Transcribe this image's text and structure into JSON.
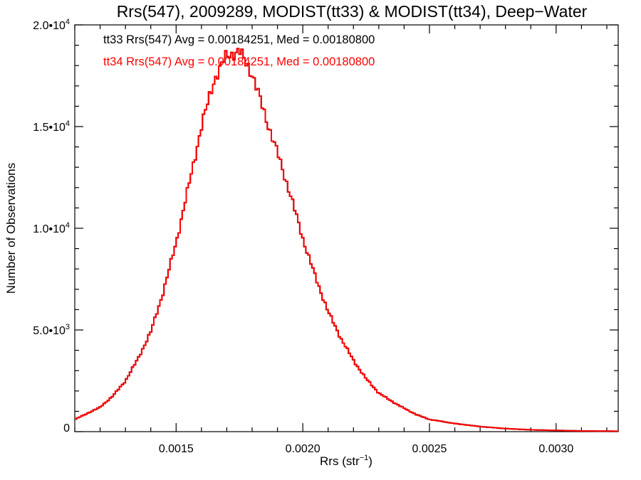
{
  "chart_data": {
    "type": "line",
    "title": "Rrs(547), 2009289, MODIST(tt33) & MODIST(tt34), Deep−Water",
    "xlabel_main": "Rrs (str",
    "xlabel_sup": "−1",
    "xlabel_close": ")",
    "ylabel": "Number of Observations",
    "xlim": [
      0.0011,
      0.003245
    ],
    "ylim": [
      0,
      20000
    ],
    "x_ticks": [
      {
        "value": 0.0015,
        "label": "0.0015"
      },
      {
        "value": 0.002,
        "label": "0.0020"
      },
      {
        "value": 0.0025,
        "label": "0.0025"
      },
      {
        "value": 0.003,
        "label": "0.0030"
      }
    ],
    "x_minor_step": 0.0001,
    "y_ticks": [
      {
        "value": 0,
        "mant": "0",
        "exp": ""
      },
      {
        "value": 5000,
        "mant": "5.0•10",
        "exp": "3"
      },
      {
        "value": 10000,
        "mant": "1.0•10",
        "exp": "4"
      },
      {
        "value": 15000,
        "mant": "1.5•10",
        "exp": "4"
      },
      {
        "value": 20000,
        "mant": "2.0•10",
        "exp": "4"
      }
    ],
    "y_minor_step": 1000,
    "annotations": [
      {
        "text": "tt33 Rrs(547) Avg = 0.00184251, Med = 0.00180800",
        "color": "#000000"
      },
      {
        "text": "tt34 Rrs(547) Avg = 0.00184251, Med = 0.00180800",
        "color": "#ff0000"
      }
    ],
    "series": [
      {
        "name": "tt34",
        "color": "#ff0000",
        "bin_width": 8e-06,
        "x_start": 0.0011,
        "anchors": [
          [
            0.0011,
            600
          ],
          [
            0.00115,
            900
          ],
          [
            0.0012,
            1200
          ],
          [
            0.00125,
            1750
          ],
          [
            0.0013,
            2500
          ],
          [
            0.00135,
            3600
          ],
          [
            0.0014,
            4900
          ],
          [
            0.00145,
            6900
          ],
          [
            0.0015,
            9300
          ],
          [
            0.00155,
            12100
          ],
          [
            0.0016,
            15000
          ],
          [
            0.00165,
            17300
          ],
          [
            0.0017,
            18500
          ],
          [
            0.00175,
            18700
          ],
          [
            0.0018,
            17600
          ],
          [
            0.00185,
            15600
          ],
          [
            0.0019,
            13700
          ],
          [
            0.00195,
            11700
          ],
          [
            0.002,
            9500
          ],
          [
            0.00205,
            7600
          ],
          [
            0.0021,
            5900
          ],
          [
            0.00215,
            4600
          ],
          [
            0.0022,
            3500
          ],
          [
            0.00225,
            2600
          ],
          [
            0.0023,
            1900
          ],
          [
            0.00235,
            1500
          ],
          [
            0.0024,
            1150
          ],
          [
            0.00245,
            830
          ],
          [
            0.0025,
            600
          ],
          [
            0.0026,
            400
          ],
          [
            0.0027,
            250
          ],
          [
            0.0028,
            150
          ],
          [
            0.0029,
            90
          ],
          [
            0.003,
            60
          ],
          [
            0.0031,
            35
          ],
          [
            0.003245,
            20
          ]
        ]
      }
    ]
  }
}
